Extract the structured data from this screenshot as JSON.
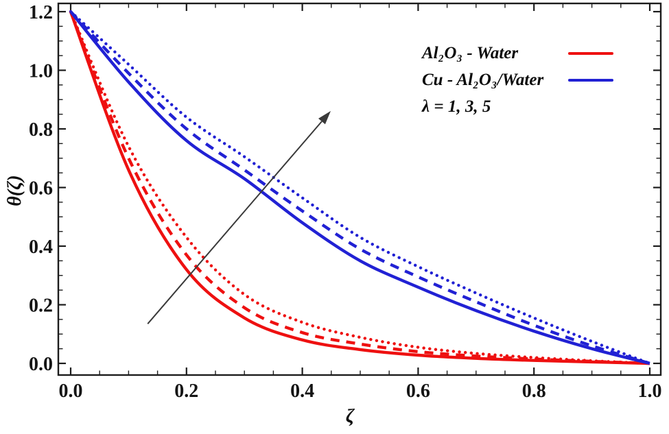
{
  "figure": {
    "background": "#ffffff",
    "frame_color": "#1c1c1c",
    "tick_label_color": "#141414"
  },
  "chart_data": {
    "type": "line",
    "title": "",
    "xlabel": "ζ",
    "ylabel": "θ(ζ)",
    "xlim": [
      0,
      1.0
    ],
    "ylim": [
      0,
      1.2
    ],
    "x_major_ticks": [
      0,
      0.2,
      0.4,
      0.6,
      0.8,
      1.0
    ],
    "x_tick_labels": [
      "0.0",
      "0.2",
      "0.4",
      "0.6",
      "0.8",
      "1.0"
    ],
    "y_major_ticks": [
      0,
      0.2,
      0.4,
      0.6,
      0.8,
      1.0,
      1.2
    ],
    "y_tick_labels": [
      "0.0",
      "0.2",
      "0.4",
      "0.6",
      "0.8",
      "1.0",
      "1.2"
    ],
    "minor_tick_step": 0.05,
    "grid": false,
    "frame": true,
    "ticks_on_all_sides": true,
    "x": [
      0,
      0.1,
      0.2,
      0.3,
      0.4,
      0.5,
      0.6,
      0.7,
      0.8,
      0.9,
      1.0
    ],
    "series": [
      {
        "id": "al2o3-water-lambda1",
        "group": "Al₂O₃ - Water",
        "lambda": 1,
        "style": "solid",
        "color": "#ee1010",
        "values": [
          1.2,
          0.66,
          0.32,
          0.155,
          0.08,
          0.047,
          0.028,
          0.017,
          0.01,
          0.005,
          0.0
        ]
      },
      {
        "id": "al2o3-water-lambda3",
        "group": "Al₂O₃ - Water",
        "lambda": 3,
        "style": "dashed",
        "color": "#ee1010",
        "values": [
          1.2,
          0.7,
          0.37,
          0.19,
          0.105,
          0.066,
          0.04,
          0.025,
          0.015,
          0.007,
          0.0
        ]
      },
      {
        "id": "al2o3-water-lambda5",
        "group": "Al₂O₃ - Water",
        "lambda": 5,
        "style": "dotted",
        "color": "#ee1010",
        "values": [
          1.2,
          0.74,
          0.43,
          0.235,
          0.14,
          0.089,
          0.055,
          0.034,
          0.02,
          0.009,
          0.0
        ]
      },
      {
        "id": "cu-al2o3-water-lambda1",
        "group": "Cu - Al₂O₃/Water",
        "lambda": 1,
        "style": "solid",
        "color": "#2121d4",
        "values": [
          1.2,
          0.96,
          0.76,
          0.63,
          0.48,
          0.35,
          0.26,
          0.18,
          0.11,
          0.05,
          0.0
        ]
      },
      {
        "id": "cu-al2o3-water-lambda3",
        "group": "Cu - Al₂O₃/Water",
        "lambda": 3,
        "style": "dashed",
        "color": "#2121d4",
        "values": [
          1.2,
          0.99,
          0.8,
          0.66,
          0.52,
          0.39,
          0.295,
          0.21,
          0.13,
          0.06,
          0.0
        ]
      },
      {
        "id": "cu-al2o3-water-lambda5",
        "group": "Cu - Al₂O₃/Water",
        "lambda": 5,
        "style": "dotted",
        "color": "#2121d4",
        "values": [
          1.2,
          1.02,
          0.84,
          0.705,
          0.565,
          0.43,
          0.33,
          0.24,
          0.155,
          0.075,
          0.0
        ]
      }
    ],
    "legend": {
      "position": "top-right",
      "entries": [
        {
          "label": "Al₂O₃ - Water",
          "color": "#ee1010"
        },
        {
          "label": "Cu - Al₂O₃/Water",
          "color": "#2121d4"
        },
        {
          "label": "λ = 1, 3, 5",
          "color": null
        }
      ]
    },
    "annotations": [
      {
        "type": "arrow",
        "from": [
          0.133,
          0.135
        ],
        "to": [
          0.449,
          0.861
        ],
        "color": "#3a3a3a"
      }
    ]
  }
}
